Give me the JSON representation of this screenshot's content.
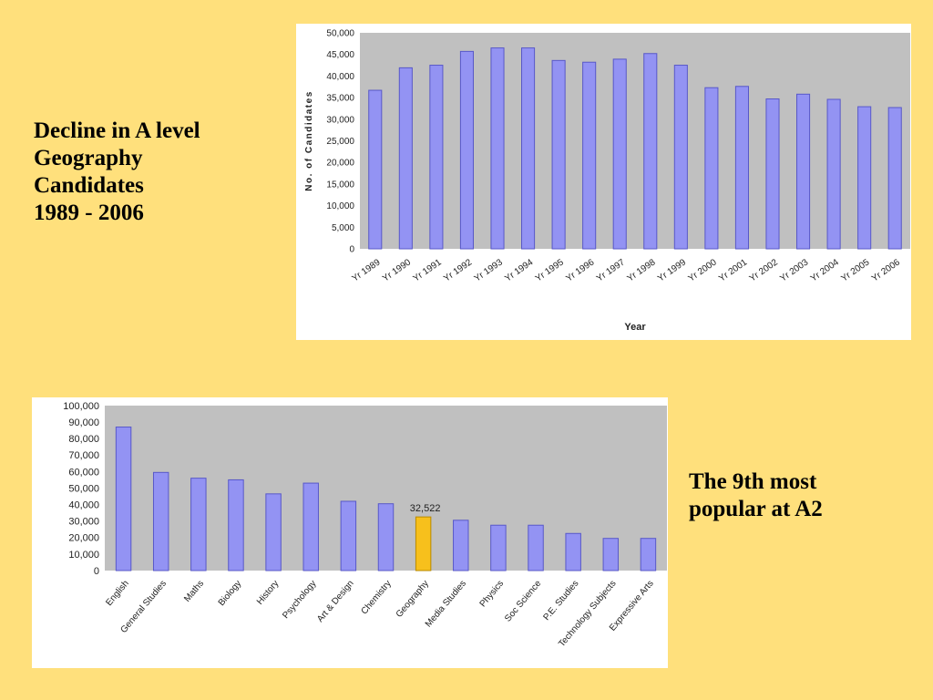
{
  "slide": {
    "background": "#ffe07c",
    "caption_top": {
      "lines": [
        "Decline in A level",
        "Geography",
        "Candidates",
        "1989 - 2006"
      ]
    },
    "caption_bottom": {
      "lines": [
        "The 9th most",
        "popular at A2"
      ]
    }
  },
  "chart_data": [
    {
      "type": "bar",
      "xlabel": "Year",
      "ylabel": "No. of Candidates",
      "ylim": [
        0,
        50000
      ],
      "yticks": [
        "0",
        "5,000",
        "10,000",
        "15,000",
        "20,000",
        "25,000",
        "30,000",
        "35,000",
        "40,000",
        "45,000",
        "50,000"
      ],
      "categories": [
        "Yr 1989",
        "Yr 1990",
        "Yr 1991",
        "Yr 1992",
        "Yr 1993",
        "Yr 1994",
        "Yr 1995",
        "Yr 1996",
        "Yr 1997",
        "Yr 1998",
        "Yr 1999",
        "Yr 2000",
        "Yr 2001",
        "Yr 2002",
        "Yr 2003",
        "Yr 2004",
        "Yr 2005",
        "Yr 2006"
      ],
      "values": [
        36700,
        41900,
        42500,
        45700,
        46500,
        46500,
        43600,
        43200,
        43900,
        45200,
        42500,
        37300,
        37600,
        34700,
        35800,
        34600,
        32900,
        32700
      ],
      "grid": false,
      "colors": {
        "plot_bg": "#c0c0c0",
        "bar": "#9393f3",
        "bar_edge": "#5858c8"
      }
    },
    {
      "type": "bar",
      "ylim": [
        0,
        100000
      ],
      "yticks": [
        "0",
        "10,000",
        "20,000",
        "30,000",
        "40,000",
        "50,000",
        "60,000",
        "70,000",
        "80,000",
        "90,000",
        "100,000"
      ],
      "categories": [
        "English",
        "General Studies",
        "Maths",
        "Biology",
        "History",
        "Psychology",
        "Art & Design",
        "Chemistry",
        "Geography",
        "Media Studies",
        "Physics",
        "Soc Science",
        "P.E. Studies",
        "Technology Subjects",
        "Expressive Arts"
      ],
      "values": [
        87000,
        59500,
        56000,
        55000,
        46500,
        53000,
        42000,
        40500,
        32522,
        30500,
        27500,
        27500,
        22500,
        19500,
        19500
      ],
      "highlight_index": 8,
      "highlight_label": "32,522",
      "grid": false,
      "colors": {
        "plot_bg": "#c0c0c0",
        "bar": "#9393f3",
        "bar_edge": "#5858c8",
        "highlight": "#f7c01c",
        "highlight_edge": "#b88a00"
      }
    }
  ]
}
